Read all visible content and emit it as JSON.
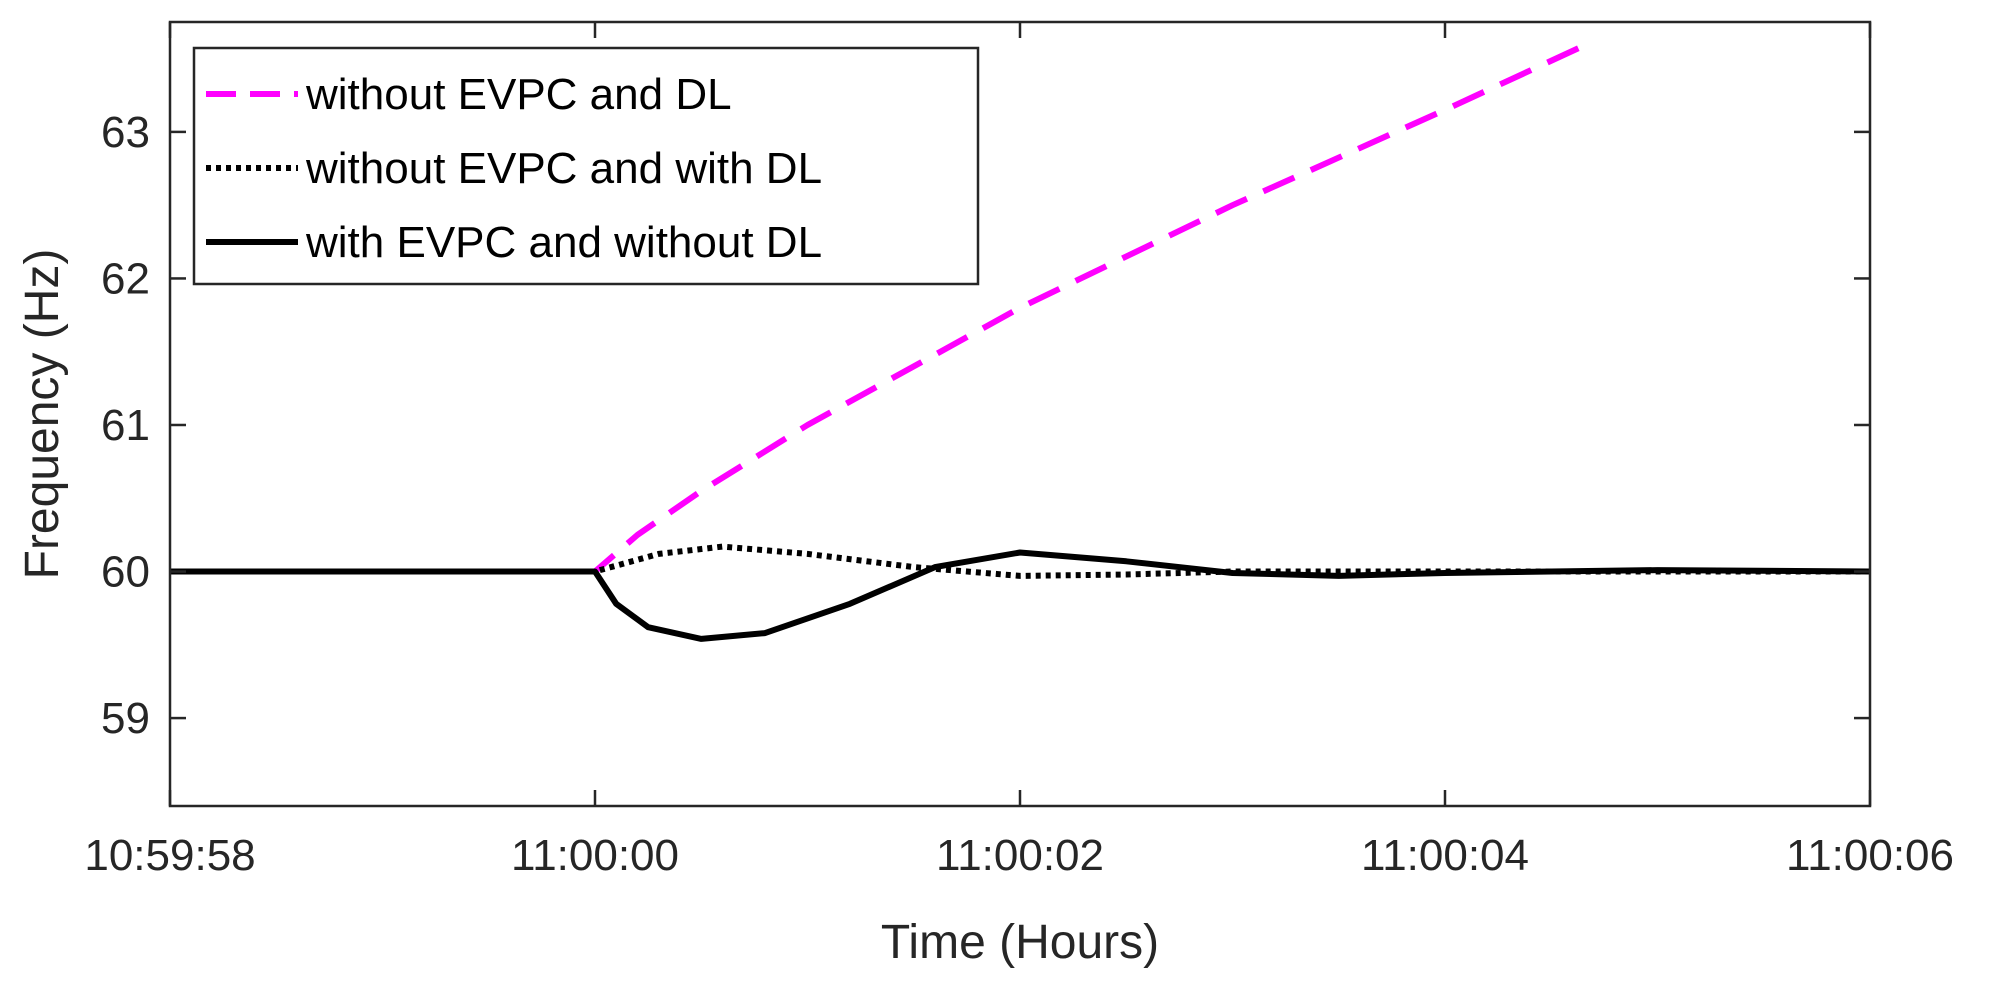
{
  "chart_data": {
    "type": "line",
    "title": "",
    "xlabel": "Time (Hours)",
    "ylabel": "Frequency (Hz)",
    "x_unit": "time of day (hh:mm:ss)",
    "xlim": [
      "10:59:58",
      "11:00:06"
    ],
    "ylim": [
      58.4,
      63.75
    ],
    "x_ticks": [
      "10:59:58",
      "11:00:00",
      "11:00:02",
      "11:00:04",
      "11:00:06"
    ],
    "y_ticks": [
      59,
      60,
      61,
      62,
      63
    ],
    "grid": false,
    "legend_position": "top-left",
    "series": [
      {
        "name": "without EVPC and DL",
        "color": "#ff00ff",
        "style": "dashed",
        "points": [
          [
            "10:59:58.00",
            60.0
          ],
          [
            "11:00:00.00",
            60.0
          ],
          [
            "11:00:00.20",
            60.25
          ],
          [
            "11:00:00.50",
            60.55
          ],
          [
            "11:00:01.00",
            61.0
          ],
          [
            "11:00:02.00",
            61.8
          ],
          [
            "11:00:03.00",
            62.5
          ],
          [
            "11:00:04.00",
            63.15
          ],
          [
            "11:00:04.70",
            63.62
          ]
        ]
      },
      {
        "name": "without EVPC and with DL",
        "color": "#000000",
        "style": "dotted",
        "points": [
          [
            "10:59:58.00",
            60.0
          ],
          [
            "11:00:00.00",
            60.0
          ],
          [
            "11:00:00.30",
            60.12
          ],
          [
            "11:00:00.60",
            60.17
          ],
          [
            "11:00:01.00",
            60.12
          ],
          [
            "11:00:01.50",
            60.03
          ],
          [
            "11:00:02.00",
            59.97
          ],
          [
            "11:00:02.50",
            59.98
          ],
          [
            "11:00:03.00",
            60.0
          ],
          [
            "11:00:06.00",
            60.0
          ]
        ]
      },
      {
        "name": "with EVPC and without DL",
        "color": "#000000",
        "style": "solid",
        "points": [
          [
            "10:59:58.00",
            60.0
          ],
          [
            "11:00:00.00",
            60.0
          ],
          [
            "11:00:00.10",
            59.78
          ],
          [
            "11:00:00.25",
            59.62
          ],
          [
            "11:00:00.50",
            59.54
          ],
          [
            "11:00:00.80",
            59.58
          ],
          [
            "11:00:01.20",
            59.78
          ],
          [
            "11:00:01.60",
            60.03
          ],
          [
            "11:00:02.00",
            60.13
          ],
          [
            "11:00:02.50",
            60.07
          ],
          [
            "11:00:03.00",
            59.99
          ],
          [
            "11:00:03.50",
            59.97
          ],
          [
            "11:00:04.00",
            59.99
          ],
          [
            "11:00:05.00",
            60.01
          ],
          [
            "11:00:06.00",
            60.0
          ]
        ]
      }
    ]
  }
}
